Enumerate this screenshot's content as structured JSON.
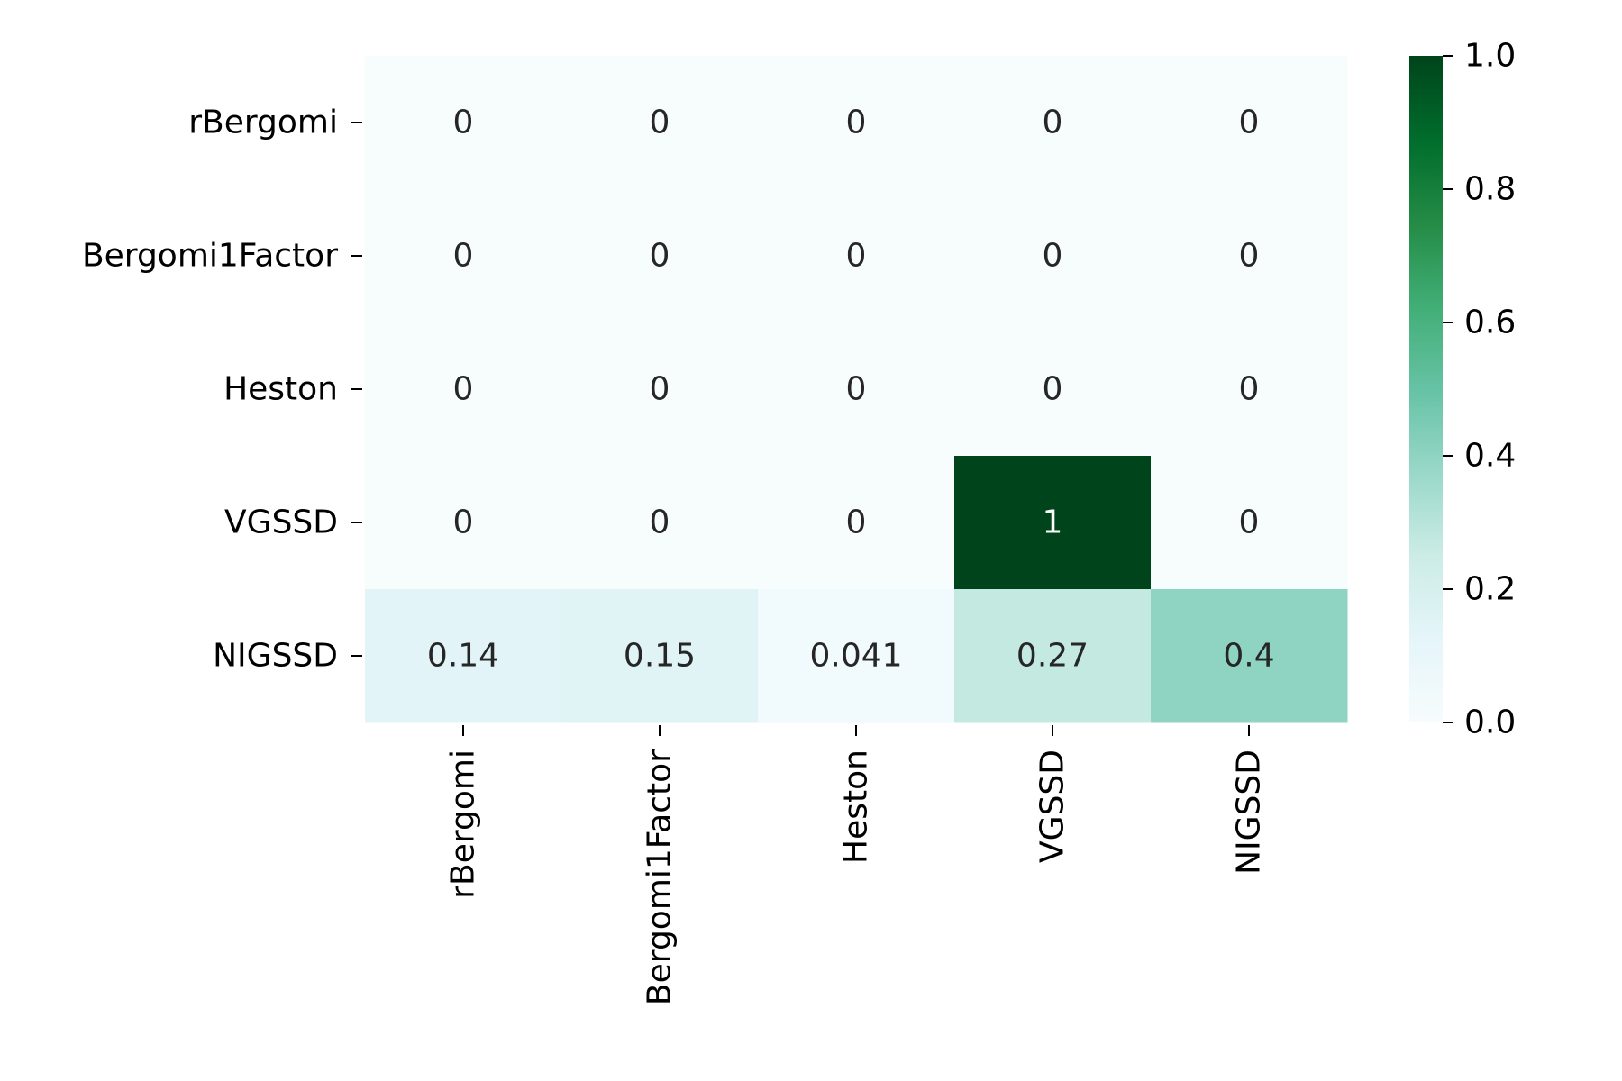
{
  "chart_data": {
    "type": "heatmap",
    "rows": [
      "rBergomi",
      "Bergomi1Factor",
      "Heston",
      "VGSSD",
      "NIGSSD"
    ],
    "columns": [
      "rBergomi",
      "Bergomi1Factor",
      "Heston",
      "VGSSD",
      "NIGSSD"
    ],
    "values": [
      [
        0,
        0,
        0,
        0,
        0
      ],
      [
        0,
        0,
        0,
        0,
        0
      ],
      [
        0,
        0,
        0,
        0,
        0
      ],
      [
        0,
        0,
        0,
        1,
        0
      ],
      [
        0.14,
        0.15,
        0.041,
        0.27,
        0.4
      ]
    ],
    "annotations": [
      [
        "0",
        "0",
        "0",
        "0",
        "0"
      ],
      [
        "0",
        "0",
        "0",
        "0",
        "0"
      ],
      [
        "0",
        "0",
        "0",
        "0",
        "0"
      ],
      [
        "0",
        "0",
        "0",
        "1",
        "0"
      ],
      [
        "0.14",
        "0.15",
        "0.041",
        "0.27",
        "0.4"
      ]
    ],
    "colorbar": {
      "range": [
        0,
        1
      ],
      "tick_values": [
        0,
        0.2,
        0.4,
        0.6,
        0.8,
        1.0
      ],
      "tick_labels": [
        "0.0",
        "0.2",
        "0.4",
        "0.6",
        "0.8",
        "1.0"
      ]
    },
    "colormap": "BuGn",
    "colormap_stops": [
      "#f7fcfd",
      "#e5f5f9",
      "#ccece6",
      "#99d8c9",
      "#66c2a4",
      "#41ae76",
      "#238b45",
      "#006d2c",
      "#00441b"
    ],
    "text_colors": {
      "dark": "#262626",
      "light": "#ffffff"
    },
    "title": "",
    "xlabel": "",
    "ylabel": ""
  }
}
